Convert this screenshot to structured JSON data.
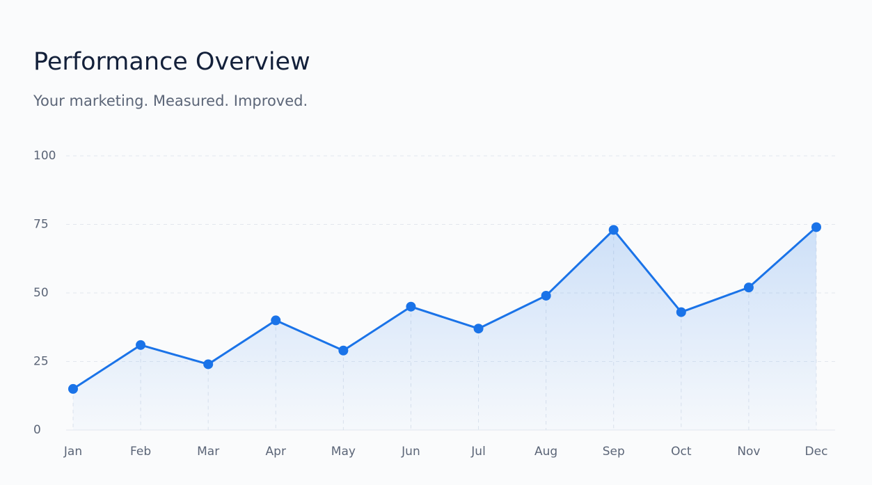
{
  "chart_data": {
    "type": "line",
    "title": "Performance Overview",
    "subtitle": "Your marketing. Measured. Improved.",
    "categories": [
      "Jan",
      "Feb",
      "Mar",
      "Apr",
      "May",
      "Jun",
      "Jul",
      "Aug",
      "Sep",
      "Oct",
      "Nov",
      "Dec"
    ],
    "values": [
      15,
      31,
      24,
      40,
      29,
      45,
      37,
      49,
      73,
      43,
      52,
      74
    ],
    "color": "#1a73e8",
    "ylim": [
      0,
      100
    ],
    "yticks": [
      0,
      25,
      50,
      75,
      100
    ],
    "grid": true
  }
}
